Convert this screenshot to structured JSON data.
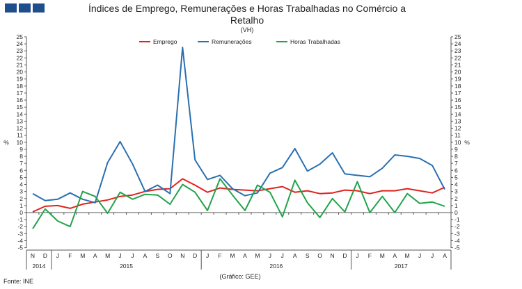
{
  "header": {
    "title_line1": "Índices de Emprego, Remunerações e Horas Trabalhadas no Comércio a",
    "title_line2": "Retalho",
    "subtitle": "(VH)"
  },
  "colors": {
    "emprego": "#e0221e",
    "remuneracoes": "#2a6fb0",
    "horas": "#22a34a",
    "logo": "#1f4e8c"
  },
  "footer": {
    "source": "Fonte: INE",
    "credit": "(Gráfico: GEE)"
  },
  "chart_data": {
    "type": "line",
    "title": "Índices de Emprego, Remunerações e Horas Trabalhadas no Comércio a Retalho",
    "subtitle": "(VH)",
    "ylabel_left": "%",
    "ylabel_right": "%",
    "ylim": [
      -5,
      25
    ],
    "yticks": [
      -5,
      -4,
      -3,
      -2,
      -1,
      0,
      1,
      2,
      3,
      4,
      5,
      6,
      7,
      8,
      9,
      10,
      11,
      12,
      13,
      14,
      15,
      16,
      17,
      18,
      19,
      20,
      21,
      22,
      23,
      24,
      25
    ],
    "legend_position": "top-center",
    "categories": [
      "N",
      "D",
      "J",
      "F",
      "M",
      "A",
      "M",
      "J",
      "J",
      "A",
      "S",
      "O",
      "N",
      "D",
      "J",
      "F",
      "M",
      "A",
      "M",
      "J",
      "J",
      "A",
      "S",
      "O",
      "N",
      "D",
      "J",
      "F",
      "M",
      "A",
      "M",
      "J",
      "J",
      "A"
    ],
    "years": [
      {
        "label": "2014",
        "start": 0,
        "end": 1
      },
      {
        "label": "2015",
        "start": 2,
        "end": 13
      },
      {
        "label": "2016",
        "start": 14,
        "end": 25
      },
      {
        "label": "2017",
        "start": 26,
        "end": 33
      }
    ],
    "series": [
      {
        "name": "Emprego",
        "color": "#e0221e",
        "values": [
          0.1,
          0.9,
          1.0,
          0.6,
          1.2,
          1.5,
          1.8,
          2.3,
          2.5,
          3.0,
          3.3,
          3.4,
          4.8,
          3.9,
          2.9,
          3.5,
          3.3,
          3.2,
          3.1,
          3.4,
          3.7,
          2.9,
          3.1,
          2.7,
          2.8,
          3.2,
          3.1,
          2.7,
          3.1,
          3.1,
          3.4,
          3.1,
          2.8,
          3.6
        ]
      },
      {
        "name": "Remunerações",
        "color": "#2a6fb0",
        "values": [
          2.7,
          1.7,
          1.9,
          2.8,
          1.9,
          1.4,
          7.1,
          10.1,
          6.9,
          3.0,
          3.9,
          2.7,
          23.5,
          7.5,
          4.7,
          5.3,
          3.4,
          2.4,
          2.8,
          5.6,
          6.4,
          9.1,
          5.9,
          6.9,
          8.5,
          5.5,
          5.3,
          5.1,
          6.3,
          8.2,
          8.0,
          7.7,
          6.7,
          3.3
        ]
      },
      {
        "name": "Horas Trabalhadas",
        "color": "#22a34a",
        "values": [
          -2.3,
          0.5,
          -1.2,
          -2.0,
          3.0,
          2.3,
          -0.1,
          2.9,
          1.9,
          2.6,
          2.5,
          1.2,
          4.0,
          2.9,
          0.3,
          4.8,
          2.5,
          0.3,
          3.9,
          2.9,
          -0.6,
          4.6,
          1.4,
          -0.7,
          2.0,
          0.1,
          4.4,
          0.0,
          2.3,
          0.0,
          2.7,
          1.3,
          1.5,
          0.9
        ]
      }
    ]
  }
}
